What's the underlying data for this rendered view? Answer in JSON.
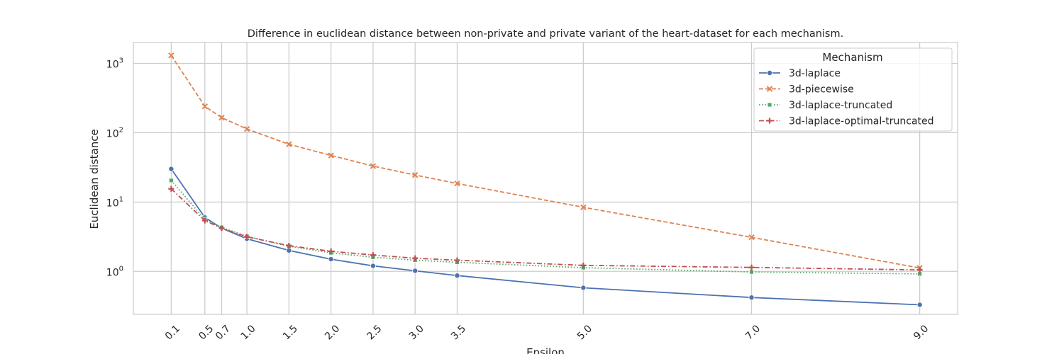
{
  "chart_data": {
    "type": "line",
    "title": "Difference in euclidean distance between non-private and private variant of the heart-dataset for each mechanism.",
    "xlabel": "Epsilon",
    "ylabel": "Euclidean distance",
    "x": [
      0.1,
      0.5,
      0.7,
      1.0,
      1.5,
      2.0,
      2.5,
      3.0,
      3.5,
      5.0,
      7.0,
      9.0
    ],
    "x_tick_labels": [
      "0.1",
      "0.5",
      "0.7",
      "1.0",
      "1.5",
      "2.0",
      "2.5",
      "3.0",
      "3.5",
      "5.0",
      "7.0",
      "9.0"
    ],
    "y_scale": "log",
    "ylim": [
      0.24,
      2000
    ],
    "y_ticks": [
      {
        "value": 1,
        "base": "10",
        "exp": "0"
      },
      {
        "value": 10,
        "base": "10",
        "exp": "1"
      },
      {
        "value": 100,
        "base": "10",
        "exp": "2"
      },
      {
        "value": 1000,
        "base": "10",
        "exp": "3"
      }
    ],
    "grid": true,
    "legend": {
      "title": "Mechanism",
      "placement": "top-right"
    },
    "series": [
      {
        "name": "3d-laplace",
        "color": "#4c72b0",
        "dash": "solid",
        "marker": "circle",
        "values": [
          30,
          6.0,
          4.2,
          2.95,
          2.0,
          1.5,
          1.2,
          1.02,
          0.87,
          0.58,
          0.42,
          0.33
        ]
      },
      {
        "name": "3d-piecewise",
        "color": "#dd8452",
        "dash": "dashed",
        "marker": "x",
        "values": [
          1300,
          240,
          165,
          113,
          68,
          47,
          33,
          24.5,
          18.5,
          8.4,
          3.1,
          1.12
        ]
      },
      {
        "name": "3d-laplace-truncated",
        "color": "#55a868",
        "dash": "dotted",
        "marker": "square",
        "values": [
          20.5,
          5.6,
          4.3,
          3.2,
          2.3,
          1.85,
          1.6,
          1.45,
          1.35,
          1.13,
          0.98,
          0.92
        ]
      },
      {
        "name": "3d-laplace-optimal-truncated",
        "color": "#c44e52",
        "dash": "dashdot",
        "marker": "plus",
        "values": [
          15.5,
          5.4,
          4.2,
          3.15,
          2.35,
          1.95,
          1.72,
          1.55,
          1.45,
          1.22,
          1.14,
          1.05
        ]
      }
    ]
  }
}
